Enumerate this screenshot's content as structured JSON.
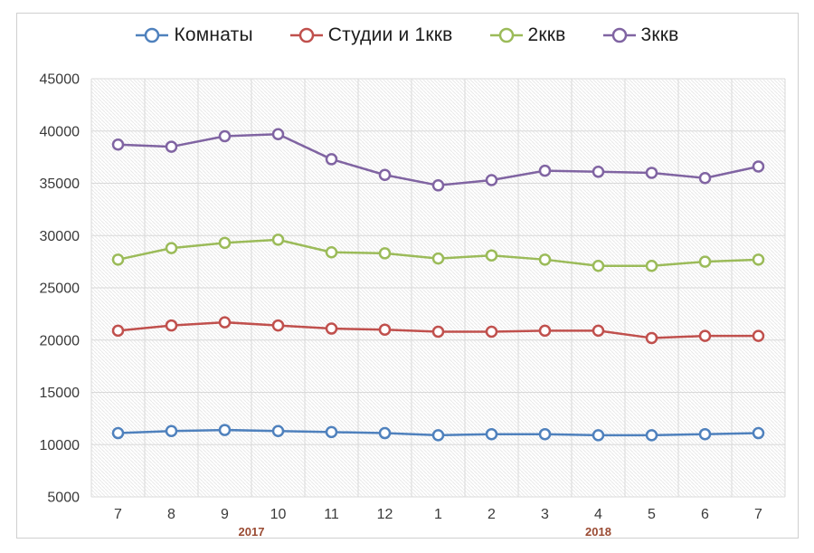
{
  "chart_data": {
    "type": "line",
    "title": "",
    "categories": [
      "7",
      "8",
      "9",
      "10",
      "11",
      "12",
      "1",
      "2",
      "3",
      "4",
      "5",
      "6",
      "7"
    ],
    "year_groups": [
      {
        "label": "2017",
        "from": 0,
        "to": 5
      },
      {
        "label": "2018",
        "from": 6,
        "to": 12
      }
    ],
    "yticks": [
      "45000",
      "40000",
      "35000",
      "30000",
      "25000",
      "20000",
      "15000",
      "10000",
      "5000"
    ],
    "ylim": [
      5000,
      45000
    ],
    "ytick_step": 5000,
    "grid": true,
    "legend_position": "top",
    "plot_background": "light-downward-diagonal-hatch",
    "series": [
      {
        "name": "Комнаты",
        "color": "#4F81BD",
        "marker": "circle-open",
        "values": [
          11100,
          11300,
          11400,
          11300,
          11200,
          11100,
          10900,
          11000,
          11000,
          10900,
          10900,
          11000,
          11100
        ]
      },
      {
        "name": "Студии и 1ккв",
        "color": "#C0504D",
        "marker": "circle-open",
        "values": [
          20900,
          21400,
          21700,
          21400,
          21100,
          21000,
          20800,
          20800,
          20900,
          20900,
          20200,
          20400,
          20400
        ]
      },
      {
        "name": "2ккв",
        "color": "#9BBB59",
        "marker": "circle-open",
        "values": [
          27700,
          28800,
          29300,
          29600,
          28400,
          28300,
          27800,
          28100,
          27700,
          27100,
          27100,
          27500,
          27700
        ]
      },
      {
        "name": "3ккв",
        "color": "#8064A2",
        "marker": "circle-open",
        "values": [
          38700,
          38500,
          39500,
          39700,
          37300,
          35800,
          34800,
          35300,
          36200,
          36100,
          36000,
          35500,
          36600
        ]
      }
    ],
    "colors": {
      "grid": "#d9d9d9",
      "frame_border": "#cfcfcf",
      "hatch": "#e9e9e9",
      "axis_text": "#3a3a3a",
      "year_text": "#9a4b33"
    }
  }
}
